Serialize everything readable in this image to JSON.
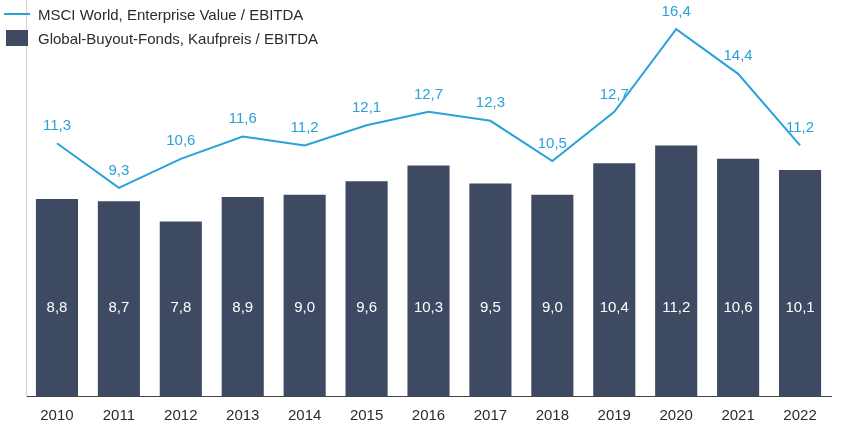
{
  "chart_data": {
    "type": "bar",
    "categories": [
      "2010",
      "2011",
      "2012",
      "2013",
      "2014",
      "2015",
      "2016",
      "2017",
      "2018",
      "2019",
      "2020",
      "2021",
      "2022"
    ],
    "series": [
      {
        "name": "MSCI World, Enterprise Value / EBITDA",
        "type": "line",
        "color": "#2aa1da",
        "values": [
          11.3,
          9.3,
          10.6,
          11.6,
          11.2,
          12.1,
          12.7,
          12.3,
          10.5,
          12.7,
          16.4,
          14.4,
          11.2
        ],
        "value_labels": [
          "11,3",
          "9,3",
          "10,6",
          "11,6",
          "11,2",
          "12,1",
          "12,7",
          "12,3",
          "10,5",
          "12,7",
          "16,4",
          "14,4",
          "11,2"
        ]
      },
      {
        "name": "Global-Buyout-Fonds, Kaufpreis / EBITDA",
        "type": "bar",
        "color": "#3e4a62",
        "values": [
          8.8,
          8.7,
          7.8,
          8.9,
          9.0,
          9.6,
          10.3,
          9.5,
          9.0,
          10.4,
          11.2,
          10.6,
          10.1
        ],
        "value_labels": [
          "8,8",
          "8,7",
          "7,8",
          "8,9",
          "9,0",
          "9,6",
          "10,3",
          "9,5",
          "9,0",
          "10,4",
          "11,2",
          "10,6",
          "10,1"
        ]
      }
    ],
    "ylim": [
      0,
      17.7
    ],
    "grid": false,
    "legend": "top-left",
    "data_labels": true,
    "tick_labels": "x"
  }
}
